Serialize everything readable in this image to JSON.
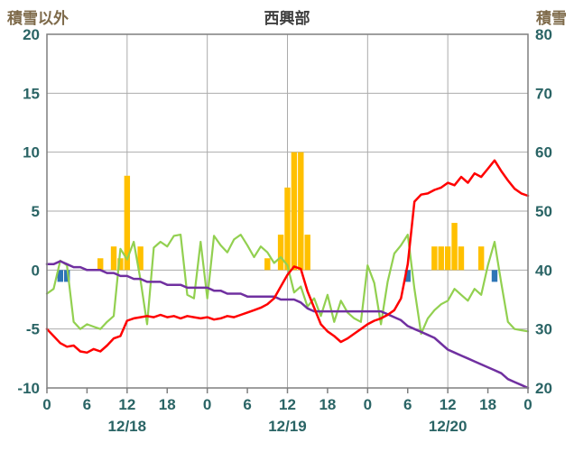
{
  "header": {
    "left_axis_title": "積雪以外",
    "chart_title": "西興部",
    "right_axis_title": "積雪"
  },
  "chart_data": {
    "type": "line",
    "title": "西興部",
    "left_axis": {
      "label": "積雪以外",
      "min": -10,
      "max": 20,
      "ticks": [
        20,
        15,
        10,
        5,
        0,
        -5,
        -10
      ]
    },
    "right_axis": {
      "label": "積雪",
      "min": 20,
      "max": 80,
      "ticks": [
        80,
        70,
        60,
        50,
        40,
        30,
        20
      ]
    },
    "x_axis": {
      "min": 0,
      "max": 72,
      "tick_interval_hours": 6,
      "tick_labels": [
        "0",
        "6",
        "12",
        "18",
        "0",
        "6",
        "12",
        "18",
        "0",
        "6",
        "12",
        "18",
        "0"
      ],
      "gridline_hours": [
        12,
        24,
        36,
        48,
        60
      ],
      "day_labels": [
        {
          "label": "12/18",
          "hour": 12
        },
        {
          "label": "12/19",
          "hour": 36
        },
        {
          "label": "12/20",
          "hour": 60
        }
      ]
    },
    "series": [
      {
        "name": "orange-bars",
        "type": "bar",
        "axis": "left",
        "color": "#FFC000",
        "points": [
          {
            "h": 8,
            "v": 1
          },
          {
            "h": 10,
            "v": 2
          },
          {
            "h": 11,
            "v": 1
          },
          {
            "h": 12,
            "v": 8
          },
          {
            "h": 14,
            "v": 2
          },
          {
            "h": 33,
            "v": 1
          },
          {
            "h": 35,
            "v": 3
          },
          {
            "h": 36,
            "v": 7
          },
          {
            "h": 37,
            "v": 10
          },
          {
            "h": 38,
            "v": 10
          },
          {
            "h": 39,
            "v": 3
          },
          {
            "h": 58,
            "v": 2
          },
          {
            "h": 59,
            "v": 2
          },
          {
            "h": 60,
            "v": 2
          },
          {
            "h": 61,
            "v": 4
          },
          {
            "h": 62,
            "v": 2
          },
          {
            "h": 65,
            "v": 2
          }
        ]
      },
      {
        "name": "blue-bars",
        "type": "bar",
        "axis": "left",
        "color": "#2E75B6",
        "points": [
          {
            "h": 2,
            "v": -1
          },
          {
            "h": 3,
            "v": -1
          },
          {
            "h": 54,
            "v": -1
          },
          {
            "h": 67,
            "v": -1
          }
        ]
      },
      {
        "name": "green-line",
        "type": "line",
        "axis": "left",
        "color": "#92D050",
        "width": 2.2,
        "values": [
          -2.0,
          -1.6,
          0.8,
          0.4,
          -4.4,
          -5.0,
          -4.6,
          -4.8,
          -5.0,
          -4.4,
          -3.9,
          1.8,
          0.9,
          2.4,
          -0.8,
          -4.6,
          1.9,
          2.4,
          2.0,
          2.9,
          3.0,
          -2.1,
          -2.4,
          2.4,
          -2.4,
          2.9,
          2.1,
          1.5,
          2.6,
          3.0,
          2.1,
          1.1,
          2.0,
          1.5,
          0.6,
          1.1,
          0.4,
          -1.9,
          -1.4,
          -3.1,
          -2.4,
          -3.9,
          -2.1,
          -4.4,
          -2.6,
          -3.6,
          -4.1,
          -4.4,
          0.4,
          -1.1,
          -4.6,
          -1.0,
          1.4,
          2.1,
          3.0,
          -1.6,
          -5.4,
          -4.1,
          -3.4,
          -2.9,
          -2.6,
          -1.6,
          -2.1,
          -2.6,
          -1.6,
          -2.1,
          0.4,
          2.4,
          -1.1,
          -4.4,
          -5.0,
          -5.1,
          -5.2
        ]
      },
      {
        "name": "purple-line",
        "type": "line",
        "axis": "right",
        "color": "#7030A0",
        "width": 2.5,
        "values": [
          41,
          41,
          41.5,
          41,
          40.5,
          40.5,
          40,
          40,
          40,
          39.5,
          39.5,
          39,
          39,
          38.5,
          38.5,
          38,
          38,
          38,
          37.5,
          37.5,
          37.5,
          37,
          37,
          37,
          37,
          36.5,
          36.5,
          36,
          36,
          36,
          35.5,
          35.5,
          35.5,
          35.5,
          35.5,
          35,
          35,
          35,
          34.5,
          33.5,
          33,
          33,
          33,
          33,
          33,
          33,
          33,
          33,
          33,
          33,
          33,
          32.5,
          32,
          31.5,
          30.5,
          30,
          29.5,
          29,
          28.5,
          27.5,
          26.5,
          26,
          25.5,
          25,
          24.5,
          24,
          23.5,
          23,
          22.5,
          21.5,
          21,
          20.5,
          20
        ]
      },
      {
        "name": "red-line",
        "type": "line",
        "axis": "left",
        "color": "#FF0000",
        "width": 2.5,
        "values": [
          -5.0,
          -5.6,
          -6.2,
          -6.5,
          -6.4,
          -6.9,
          -7.0,
          -6.7,
          -6.9,
          -6.4,
          -5.8,
          -5.6,
          -4.3,
          -4.1,
          -4.0,
          -3.9,
          -4.0,
          -3.8,
          -4.0,
          -3.9,
          -4.1,
          -3.9,
          -4.0,
          -4.1,
          -4.0,
          -4.2,
          -4.1,
          -3.9,
          -4.0,
          -3.8,
          -3.6,
          -3.4,
          -3.2,
          -2.9,
          -2.4,
          -1.4,
          -0.4,
          0.3,
          0.1,
          -1.8,
          -3.2,
          -4.6,
          -5.2,
          -5.6,
          -6.1,
          -5.8,
          -5.4,
          -5.0,
          -4.6,
          -4.3,
          -4.1,
          -3.8,
          -3.4,
          -2.4,
          0.5,
          5.8,
          6.4,
          6.5,
          6.8,
          7.0,
          7.4,
          7.2,
          7.9,
          7.4,
          8.2,
          7.9,
          8.6,
          9.3,
          8.4,
          7.6,
          6.9,
          6.5,
          6.3
        ]
      }
    ],
    "colors": {
      "grid": "#ABABAB",
      "border": "#7F7F7F",
      "tick_text": "#2A6465",
      "title_text": "#3F3F3F",
      "axis_title_text": "#7E6A4A"
    }
  }
}
